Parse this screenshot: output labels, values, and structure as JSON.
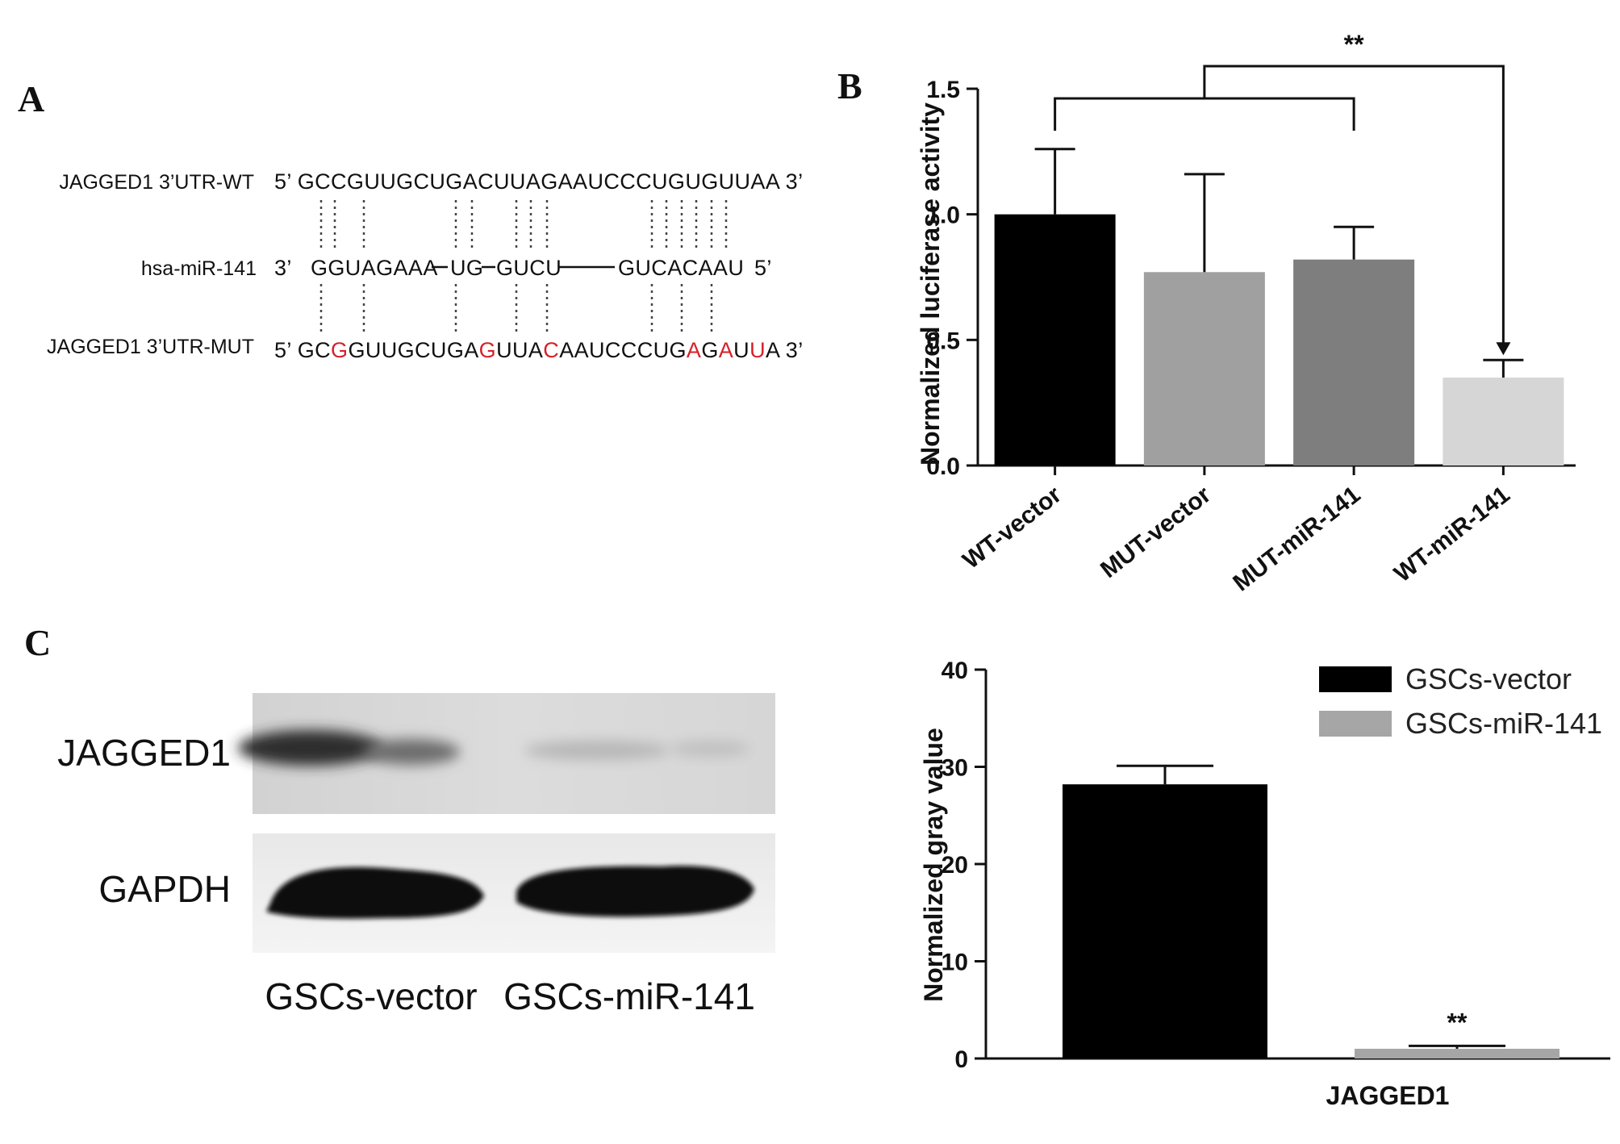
{
  "panels": {
    "a": {
      "letter": "A"
    },
    "b": {
      "letter": "B"
    },
    "c": {
      "letter": "C"
    }
  },
  "sequences": {
    "wt": {
      "label": "JAGGED1 3’UTR-WT",
      "text": "5’ GCCGUUGCUGACUUAGAAUCCCUGUGUUAA 3’"
    },
    "mir": {
      "label": "hsa-miR-141",
      "five_end": "3’",
      "parts": [
        "GGUAGAAA",
        "UG",
        "GUCU",
        "GUCACAAU"
      ],
      "three_end": "5’"
    },
    "mut": {
      "label": "JAGGED1 3’UTR-MUT",
      "prefix": "5’ ",
      "segments": [
        {
          "t": "GC",
          "m": false
        },
        {
          "t": "G",
          "m": true
        },
        {
          "t": "GUUGCUGA",
          "m": false
        },
        {
          "t": "G",
          "m": true
        },
        {
          "t": "UUA",
          "m": false
        },
        {
          "t": "C",
          "m": true
        },
        {
          "t": "AAUCCCUG",
          "m": false
        },
        {
          "t": "A",
          "m": true
        },
        {
          "t": "G",
          "m": false
        },
        {
          "t": "A",
          "m": true
        },
        {
          "t": "U",
          "m": false
        },
        {
          "t": "U",
          "m": true
        },
        {
          "t": "A",
          "m": false
        }
      ],
      "suffix": " 3’",
      "mutation_color": "#d6202a"
    }
  },
  "blot": {
    "rows": [
      "JAGGED1",
      "GAPDH"
    ],
    "lanes": [
      "GSCs-vector",
      "GSCs-miR-141"
    ]
  },
  "chart_data": [
    {
      "id": "B",
      "type": "bar",
      "ylabel": "Normalized luciferase activity",
      "categories": [
        "WT-vector",
        "MUT-vector",
        "MUT-miR-141",
        "WT-miR-141"
      ],
      "values": [
        1.0,
        0.77,
        0.82,
        0.35
      ],
      "errors": [
        0.26,
        0.39,
        0.13,
        0.07
      ],
      "colors": [
        "#000000",
        "#a0a0a0",
        "#7e7e7e",
        "#d6d6d6"
      ],
      "ylim": [
        0,
        1.5
      ],
      "yticks": [
        "0.0",
        "0.5",
        "1.0",
        "1.5"
      ],
      "significance": "**"
    },
    {
      "id": "C",
      "type": "bar",
      "ylabel": "Normalized gray value",
      "xlabel": "JAGGED1",
      "series": [
        {
          "name": "GSCs-vector",
          "value": 28.2,
          "error": 1.9,
          "color": "#000000"
        },
        {
          "name": "GSCs-miR-141",
          "value": 1.0,
          "error": 0.3,
          "color": "#a6a6a6"
        }
      ],
      "ylim": [
        0,
        40
      ],
      "yticks": [
        "0",
        "10",
        "20",
        "30",
        "40"
      ],
      "significance": "**",
      "legend": "top-right"
    }
  ]
}
